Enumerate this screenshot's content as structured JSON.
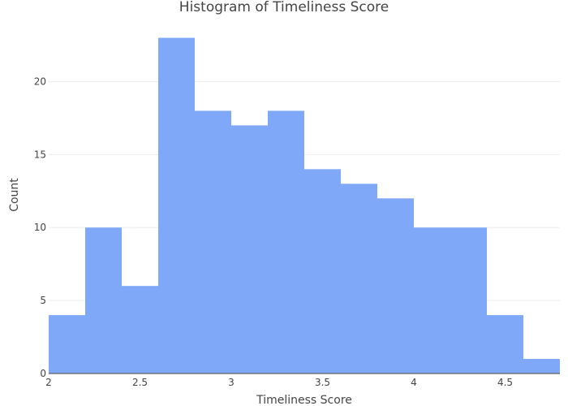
{
  "chart_data": {
    "type": "bar",
    "title": "Histogram of Timeliness Score",
    "xlabel": "Timeliness Score",
    "ylabel": "Count",
    "bin_edges": [
      2.0,
      2.2,
      2.4,
      2.6,
      2.8,
      3.0,
      3.2,
      3.4,
      3.6,
      3.8,
      4.0,
      4.2,
      4.4,
      4.6,
      4.8
    ],
    "values": [
      4,
      10,
      6,
      23,
      18,
      17,
      18,
      14,
      13,
      12,
      10,
      10,
      4,
      1
    ],
    "xlim": [
      2.0,
      4.8
    ],
    "ylim": [
      0,
      24.2
    ],
    "x_ticks": [
      2,
      2.5,
      3,
      3.5,
      4,
      4.5
    ],
    "x_tick_labels": [
      "2",
      "2.5",
      "3",
      "3.5",
      "4",
      "4.5"
    ],
    "y_ticks": [
      0,
      5,
      10,
      15,
      20
    ],
    "y_tick_labels": [
      "0",
      "5",
      "10",
      "15",
      "20"
    ],
    "bar_color": "#7fa8f8",
    "grid": true,
    "legend": "none"
  }
}
